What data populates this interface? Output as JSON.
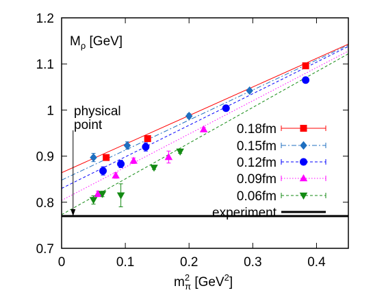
{
  "chart_data": {
    "type": "scatter",
    "title": "",
    "ylabel": "M",
    "ylabel_sub": "ρ",
    "ylabel_unit": " [GeV]",
    "xlabel": "m",
    "xlabel_sub": "π",
    "xlabel_sup": "2",
    "xlabel_unit_pre": " [GeV",
    "xlabel_unit_sup": "2",
    "xlabel_unit_post": "]",
    "xlim": [
      0,
      0.45
    ],
    "ylim": [
      0.7,
      1.2
    ],
    "xticks": [
      0,
      0.1,
      0.2,
      0.3,
      0.4
    ],
    "xtick_labels": [
      "0",
      "0.1",
      "0.2",
      "0.3",
      "0.4"
    ],
    "yticks": [
      0.7,
      0.8,
      0.9,
      1.0,
      1.1,
      1.2
    ],
    "ytick_labels": [
      "0.7",
      "0.8",
      "0.9",
      "1",
      "1.1",
      "1.2"
    ],
    "grid": false,
    "legend_position": "right",
    "annotation": {
      "lines": [
        "physical",
        "point"
      ],
      "arrow_x": 0.018,
      "arrow_from_y": 1.0,
      "arrow_to_y": 0.77
    },
    "series": [
      {
        "name": "0.18fm",
        "color": "#ff0000",
        "marker": "square",
        "line_style": "solid",
        "x": [
          0.07,
          0.135,
          0.383
        ],
        "y": [
          0.897,
          0.938,
          1.096
        ],
        "yerr": [
          0.005,
          0.005,
          0.004
        ],
        "fit": [
          [
            0,
            0.864
          ],
          [
            0.45,
            1.143
          ]
        ]
      },
      {
        "name": "0.15fm",
        "color": "#1f6fc0",
        "marker": "diamond",
        "line_style": "dashdot",
        "x": [
          0.05,
          0.103,
          0.2,
          0.295
        ],
        "y": [
          0.897,
          0.923,
          0.987,
          1.042
        ],
        "yerr": [
          0.009,
          0.008,
          0.005,
          0.004
        ],
        "fit": [
          [
            0,
            0.848
          ],
          [
            0.45,
            1.141
          ]
        ]
      },
      {
        "name": "0.12fm",
        "color": "#0000ff",
        "marker": "circle",
        "line_style": "dashed",
        "x": [
          0.065,
          0.093,
          0.132,
          0.258,
          0.383
        ],
        "y": [
          0.868,
          0.883,
          0.92,
          1.004,
          1.065
        ],
        "yerr": [
          0.009,
          0.008,
          0.009,
          0.005,
          0.005
        ],
        "fit": [
          [
            0,
            0.83
          ],
          [
            0.45,
            1.138
          ]
        ]
      },
      {
        "name": "0.09fm",
        "color": "#ff00ff",
        "marker": "triangle-up",
        "line_style": "dotted",
        "x": [
          0.057,
          0.085,
          0.113,
          0.168,
          0.223
        ],
        "y": [
          0.818,
          0.858,
          0.89,
          0.898,
          0.958
        ],
        "yerr": [
          0.006,
          0.006,
          0.006,
          0.013,
          0.004
        ],
        "fit": [
          [
            0,
            0.804
          ],
          [
            0.45,
            1.128
          ]
        ]
      },
      {
        "name": "0.06fm",
        "color": "#138a13",
        "marker": "triangle-down",
        "line_style": "dashed",
        "x": [
          0.05,
          0.064,
          0.093,
          0.145,
          0.186
        ],
        "y": [
          0.805,
          0.818,
          0.815,
          0.875,
          0.91
        ],
        "yerr": [
          0.009,
          0.006,
          0.025,
          0.004,
          0.004
        ],
        "fit": [
          [
            0,
            0.773
          ],
          [
            0.45,
            1.122
          ]
        ]
      }
    ],
    "experiment": {
      "name": "experiment",
      "value": 0.77,
      "color": "#000000"
    }
  }
}
